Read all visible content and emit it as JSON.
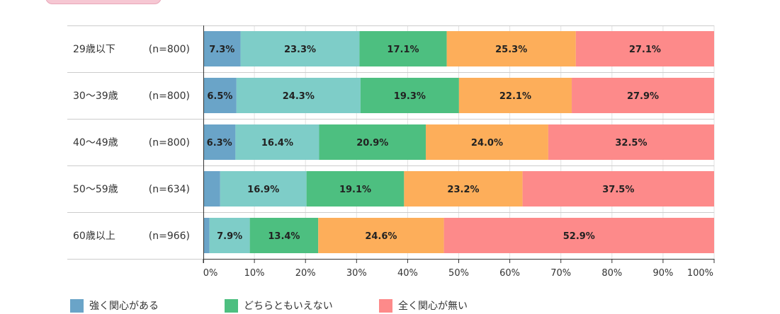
{
  "chart_data": {
    "type": "bar",
    "orientation": "horizontal",
    "stacked": true,
    "normalized": true,
    "categories": [
      "29歳以下",
      "30～39歳",
      "40～49歳",
      "50～59歳",
      "60歳以上"
    ],
    "sample_sizes": [
      "(n=800)",
      "(n=800)",
      "(n=800)",
      "(n=634)",
      "(n=966)"
    ],
    "series": [
      {
        "name": "強く関心がある",
        "color": "#6aa4c8",
        "values": [
          7.3,
          6.5,
          6.3,
          3.3,
          1.2
        ],
        "labels": [
          "7.3%",
          "6.5%",
          "6.3%",
          "",
          ""
        ]
      },
      {
        "name": "",
        "color": "#7ecdc8",
        "values": [
          23.3,
          24.3,
          16.4,
          16.9,
          7.9
        ],
        "labels": [
          "23.3%",
          "24.3%",
          "16.4%",
          "16.9%",
          "7.9%"
        ]
      },
      {
        "name": "どちらともいえない",
        "color": "#4dbf80",
        "values": [
          17.1,
          19.3,
          20.9,
          19.1,
          13.4
        ],
        "labels": [
          "17.1%",
          "19.3%",
          "20.9%",
          "19.1%",
          "13.4%"
        ]
      },
      {
        "name": "",
        "color": "#fdae5a",
        "values": [
          25.3,
          22.1,
          24.0,
          23.2,
          24.6
        ],
        "labels": [
          "25.3%",
          "22.1%",
          "24.0%",
          "23.2%",
          "24.6%"
        ]
      },
      {
        "name": "全く関心が無い",
        "color": "#fd8a8a",
        "values": [
          27.1,
          27.9,
          32.5,
          37.5,
          52.9
        ],
        "labels": [
          "27.1%",
          "27.9%",
          "32.5%",
          "37.5%",
          "52.9%"
        ]
      }
    ],
    "xlim": [
      0,
      100
    ],
    "x_ticks": [
      "0%",
      "10%",
      "20%",
      "30%",
      "40%",
      "50%",
      "60%",
      "70%",
      "80%",
      "90%",
      "100%"
    ],
    "title": "",
    "xlabel": "",
    "ylabel": "",
    "grid": true,
    "legend_position": "bottom"
  }
}
